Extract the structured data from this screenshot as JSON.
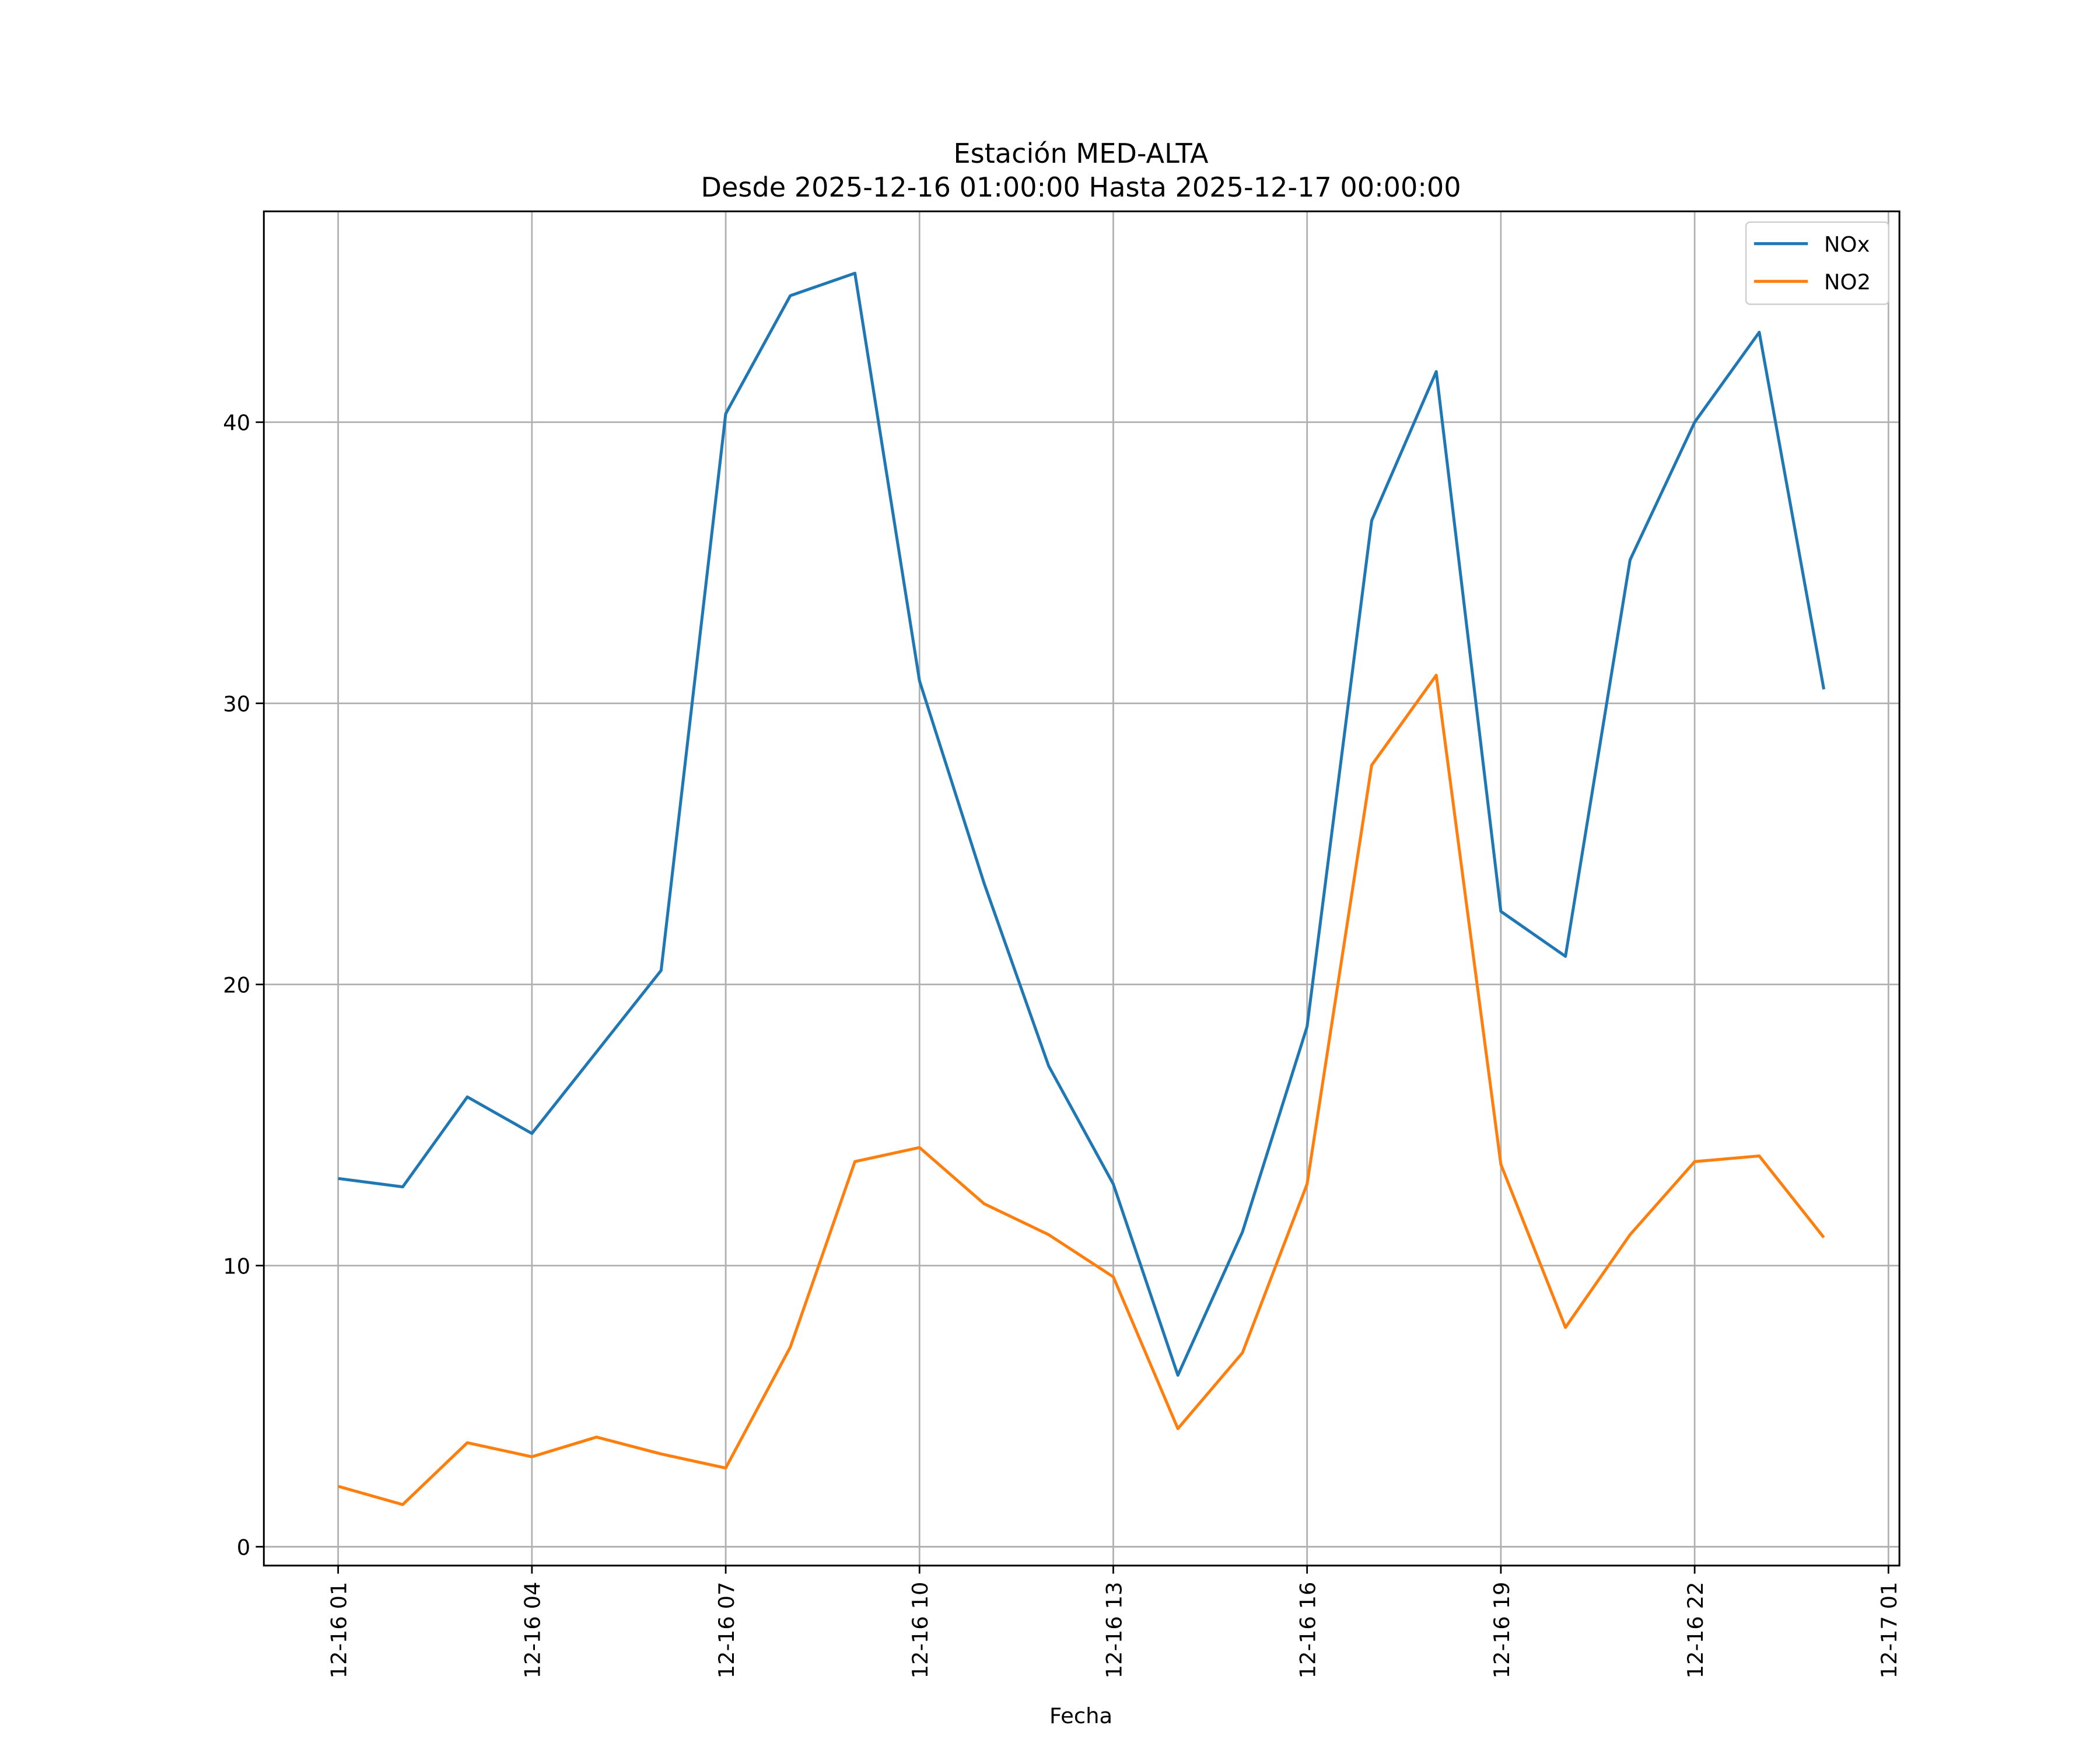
{
  "chart_data": {
    "type": "line",
    "title": "Estación MED-ALTA",
    "subtitle": "Desde 2025-12-16 01:00:00 Hasta 2025-12-17 00:00:00",
    "xlabel": "Fecha",
    "ylabel": "",
    "x": [
      "2025-12-16 01:00",
      "2025-12-16 02:00",
      "2025-12-16 03:00",
      "2025-12-16 04:00",
      "2025-12-16 05:00",
      "2025-12-16 06:00",
      "2025-12-16 07:00",
      "2025-12-16 08:00",
      "2025-12-16 09:00",
      "2025-12-16 10:00",
      "2025-12-16 11:00",
      "2025-12-16 12:00",
      "2025-12-16 13:00",
      "2025-12-16 14:00",
      "2025-12-16 15:00",
      "2025-12-16 16:00",
      "2025-12-16 17:00",
      "2025-12-16 18:00",
      "2025-12-16 19:00",
      "2025-12-16 20:00",
      "2025-12-16 21:00",
      "2025-12-16 22:00",
      "2025-12-16 23:00",
      "2025-12-17 00:00"
    ],
    "series": [
      {
        "name": "NOx",
        "color": "#1f77b4",
        "values": [
          13.1,
          12.8,
          16.0,
          14.7,
          17.6,
          20.5,
          40.3,
          44.5,
          45.3,
          30.8,
          23.6,
          17.1,
          12.9,
          6.1,
          11.2,
          18.5,
          36.5,
          41.8,
          22.6,
          21.0,
          35.1,
          40.0,
          43.2,
          30.5
        ]
      },
      {
        "name": "NO2",
        "color": "#ff7f0e",
        "values": [
          2.15,
          1.5,
          3.7,
          3.2,
          3.9,
          3.3,
          2.8,
          7.1,
          13.7,
          14.2,
          12.2,
          11.1,
          9.6,
          4.2,
          6.9,
          12.9,
          27.8,
          31.0,
          13.6,
          7.8,
          11.1,
          13.7,
          13.9,
          11.0
        ]
      }
    ],
    "xticks": [
      {
        "hour": 0,
        "label": "12-16 01"
      },
      {
        "hour": 3,
        "label": "12-16 04"
      },
      {
        "hour": 6,
        "label": "12-16 07"
      },
      {
        "hour": 9,
        "label": "12-16 10"
      },
      {
        "hour": 12,
        "label": "12-16 13"
      },
      {
        "hour": 15,
        "label": "12-16 16"
      },
      {
        "hour": 18,
        "label": "12-16 19"
      },
      {
        "hour": 21,
        "label": "12-16 22"
      },
      {
        "hour": 24,
        "label": "12-17 01"
      }
    ],
    "yticks": [
      0,
      10,
      20,
      30,
      40
    ],
    "xlim_hours": [
      -1.15,
      24.17
    ],
    "ylim": [
      -0.67,
      47.5
    ],
    "grid": true,
    "legend_position": "top-right"
  }
}
